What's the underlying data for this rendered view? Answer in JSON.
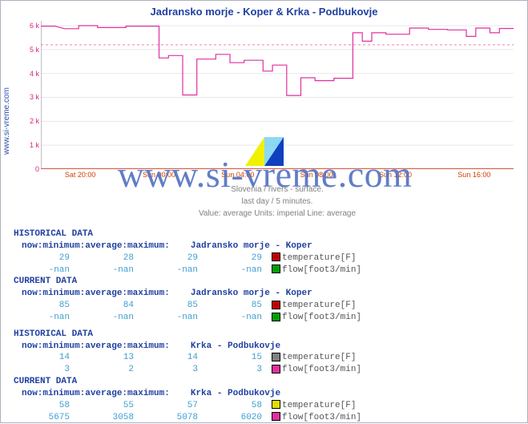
{
  "title": "Jadransko morje - Koper & Krka - Podbukovje",
  "ylabel": "www.si-vreme.com",
  "watermark": "www.si-vreme.com",
  "chart": {
    "type": "line",
    "background_color": "#ffffff",
    "grid_color": "#e8e8e8",
    "dashed_grid_color": "#f080b0",
    "red_baseline_color": "#c02000",
    "ylim": [
      0,
      6200
    ],
    "yticks": [
      0,
      1000,
      2000,
      3000,
      4000,
      5000,
      6000
    ],
    "ytick_labels": [
      "0",
      "1 k",
      "2 k",
      "3 k",
      "4 k",
      "5 k",
      "6 k"
    ],
    "ytick_color": "#e02080",
    "xtick_labels": [
      "Sat 20:00",
      "Sun 00:00",
      "Sun 04:00",
      "Sun 08:00",
      "Sun 12:00",
      "Sun 16:00"
    ],
    "xtick_color": "#d04000",
    "line_color": "#e030a0",
    "line_width": 1.2,
    "dash_ref": 5200,
    "points": [
      [
        0.0,
        5980
      ],
      [
        0.03,
        5980
      ],
      [
        0.05,
        5870
      ],
      [
        0.08,
        5870
      ],
      [
        0.08,
        6000
      ],
      [
        0.12,
        6000
      ],
      [
        0.12,
        5920
      ],
      [
        0.18,
        5920
      ],
      [
        0.18,
        5980
      ],
      [
        0.25,
        5980
      ],
      [
        0.25,
        4650
      ],
      [
        0.27,
        4650
      ],
      [
        0.27,
        4750
      ],
      [
        0.3,
        4750
      ],
      [
        0.3,
        3100
      ],
      [
        0.33,
        3100
      ],
      [
        0.33,
        4600
      ],
      [
        0.37,
        4600
      ],
      [
        0.37,
        4800
      ],
      [
        0.4,
        4800
      ],
      [
        0.4,
        4450
      ],
      [
        0.43,
        4450
      ],
      [
        0.43,
        4550
      ],
      [
        0.47,
        4550
      ],
      [
        0.47,
        4100
      ],
      [
        0.49,
        4100
      ],
      [
        0.49,
        4350
      ],
      [
        0.52,
        4350
      ],
      [
        0.52,
        3080
      ],
      [
        0.55,
        3080
      ],
      [
        0.55,
        3820
      ],
      [
        0.58,
        3820
      ],
      [
        0.58,
        3700
      ],
      [
        0.62,
        3700
      ],
      [
        0.62,
        3800
      ],
      [
        0.66,
        3800
      ],
      [
        0.66,
        5700
      ],
      [
        0.68,
        5700
      ],
      [
        0.68,
        5350
      ],
      [
        0.7,
        5350
      ],
      [
        0.7,
        5700
      ],
      [
        0.73,
        5700
      ],
      [
        0.73,
        5640
      ],
      [
        0.78,
        5640
      ],
      [
        0.78,
        5900
      ],
      [
        0.82,
        5900
      ],
      [
        0.82,
        5840
      ],
      [
        0.86,
        5840
      ],
      [
        0.86,
        5820
      ],
      [
        0.9,
        5820
      ],
      [
        0.9,
        5550
      ],
      [
        0.92,
        5550
      ],
      [
        0.92,
        5900
      ],
      [
        0.95,
        5900
      ],
      [
        0.95,
        5700
      ],
      [
        0.97,
        5700
      ],
      [
        0.97,
        5880
      ],
      [
        1.0,
        5880
      ]
    ]
  },
  "caption": {
    "line1": "Slovenia / rivers - surface.",
    "line2": "last day / 5 minutes.",
    "line3": "Value: average  Units: imperial  Line: average"
  },
  "tables": {
    "headers": {
      "now": "now:",
      "min": "minimum:",
      "avg": "average:",
      "max": "maximum:"
    },
    "historical_label": "HISTORICAL DATA",
    "current_label": "CURRENT DATA",
    "metrics": {
      "temp": "temperature[F]",
      "flow": "flow[foot3/min]"
    },
    "swatches": {
      "koper_hist_temp": "#c00000",
      "koper_hist_flow": "#00a000",
      "koper_curr_temp": "#c00000",
      "koper_curr_flow": "#00a000",
      "krka_hist_temp": "#808080",
      "krka_hist_flow": "#e030a0",
      "krka_curr_temp": "#e0e000",
      "krka_curr_flow": "#e030a0"
    },
    "stations": [
      {
        "name": "Jadransko morje - Koper",
        "hist": {
          "temp": {
            "now": "29",
            "min": "28",
            "avg": "29",
            "max": "29"
          },
          "flow": {
            "now": "-nan",
            "min": "-nan",
            "avg": "-nan",
            "max": "-nan"
          }
        },
        "curr": {
          "temp": {
            "now": "85",
            "min": "84",
            "avg": "85",
            "max": "85"
          },
          "flow": {
            "now": "-nan",
            "min": "-nan",
            "avg": "-nan",
            "max": "-nan"
          }
        }
      },
      {
        "name": "Krka - Podbukovje",
        "hist": {
          "temp": {
            "now": "14",
            "min": "13",
            "avg": "14",
            "max": "15"
          },
          "flow": {
            "now": "3",
            "min": "2",
            "avg": "3",
            "max": "3"
          }
        },
        "curr": {
          "temp": {
            "now": "58",
            "min": "55",
            "avg": "57",
            "max": "58"
          },
          "flow": {
            "now": "5675",
            "min": "3058",
            "avg": "5078",
            "max": "6020"
          }
        }
      }
    ]
  }
}
